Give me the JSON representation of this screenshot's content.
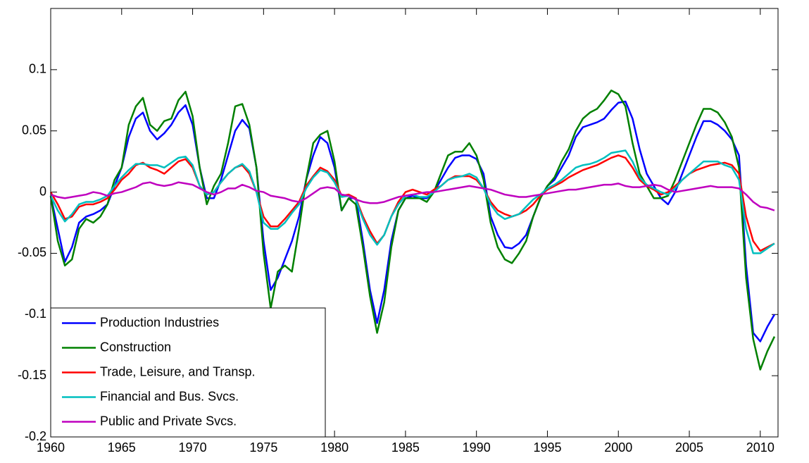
{
  "chart_data": {
    "type": "line",
    "x": [
      1960,
      1960.5,
      1961,
      1961.5,
      1962,
      1962.5,
      1963,
      1963.5,
      1964,
      1964.5,
      1965,
      1965.5,
      1966,
      1966.5,
      1967,
      1967.5,
      1968,
      1968.5,
      1969,
      1969.5,
      1970,
      1970.5,
      1971,
      1971.5,
      1972,
      1972.5,
      1973,
      1973.5,
      1974,
      1974.5,
      1975,
      1975.5,
      1976,
      1976.5,
      1977,
      1977.5,
      1978,
      1978.5,
      1979,
      1979.5,
      1980,
      1980.5,
      1981,
      1981.5,
      1982,
      1982.5,
      1983,
      1983.5,
      1984,
      1984.5,
      1985,
      1985.5,
      1986,
      1986.5,
      1987,
      1987.5,
      1988,
      1988.5,
      1989,
      1989.5,
      1990,
      1990.5,
      1991,
      1991.5,
      1992,
      1992.5,
      1993,
      1993.5,
      1994,
      1994.5,
      1995,
      1995.5,
      1996,
      1996.5,
      1997,
      1997.5,
      1998,
      1998.5,
      1999,
      1999.5,
      2000,
      2000.5,
      2001,
      2001.5,
      2002,
      2002.5,
      2003,
      2003.5,
      2004,
      2004.5,
      2005,
      2005.5,
      2006,
      2006.5,
      2007,
      2007.5,
      2008,
      2008.5,
      2009,
      2009.5,
      2010,
      2010.5,
      2011
    ],
    "series": [
      {
        "name": "Production Industries",
        "color": "#0000ff",
        "values": [
          -0.003,
          -0.03,
          -0.057,
          -0.045,
          -0.025,
          -0.02,
          -0.018,
          -0.015,
          -0.01,
          0.005,
          0.02,
          0.045,
          0.06,
          0.065,
          0.05,
          0.043,
          0.048,
          0.055,
          0.065,
          0.071,
          0.055,
          0.02,
          -0.005,
          -0.005,
          0.01,
          0.03,
          0.05,
          0.059,
          0.052,
          0.02,
          -0.04,
          -0.08,
          -0.07,
          -0.055,
          -0.04,
          -0.02,
          0.01,
          0.03,
          0.045,
          0.04,
          0.02,
          -0.015,
          -0.005,
          -0.005,
          -0.04,
          -0.08,
          -0.107,
          -0.08,
          -0.04,
          -0.015,
          -0.005,
          -0.003,
          -0.005,
          -0.005,
          0,
          0.01,
          0.02,
          0.028,
          0.03,
          0.03,
          0.027,
          0.015,
          -0.02,
          -0.035,
          -0.045,
          -0.046,
          -0.042,
          -0.035,
          -0.02,
          -0.005,
          0.005,
          0.01,
          0.02,
          0.03,
          0.045,
          0.053,
          0.055,
          0.057,
          0.06,
          0.067,
          0.073,
          0.074,
          0.06,
          0.035,
          0.015,
          0.005,
          -0.005,
          -0.01,
          0,
          0.015,
          0.03,
          0.045,
          0.058,
          0.058,
          0.055,
          0.05,
          0.043,
          0.03,
          -0.06,
          -0.115,
          -0.122,
          -0.11,
          -0.1
        ]
      },
      {
        "name": "Construction",
        "color": "#008000",
        "values": [
          -0.003,
          -0.04,
          -0.06,
          -0.055,
          -0.03,
          -0.022,
          -0.025,
          -0.02,
          -0.01,
          0.01,
          0.02,
          0.055,
          0.07,
          0.077,
          0.055,
          0.05,
          0.058,
          0.06,
          0.075,
          0.082,
          0.062,
          0.02,
          -0.01,
          0.005,
          0.015,
          0.04,
          0.07,
          0.072,
          0.055,
          0.02,
          -0.05,
          -0.095,
          -0.065,
          -0.06,
          -0.065,
          -0.03,
          0.01,
          0.04,
          0.047,
          0.05,
          0.025,
          -0.015,
          -0.005,
          -0.01,
          -0.045,
          -0.085,
          -0.115,
          -0.09,
          -0.045,
          -0.015,
          -0.005,
          -0.005,
          -0.005,
          -0.008,
          0,
          0.015,
          0.03,
          0.033,
          0.033,
          0.04,
          0.03,
          0.01,
          -0.025,
          -0.045,
          -0.055,
          -0.058,
          -0.05,
          -0.04,
          -0.02,
          -0.005,
          0.005,
          0.012,
          0.025,
          0.035,
          0.05,
          0.06,
          0.065,
          0.068,
          0.075,
          0.083,
          0.08,
          0.07,
          0.04,
          0.015,
          0.005,
          -0.005,
          -0.005,
          -0.003,
          0.01,
          0.025,
          0.04,
          0.055,
          0.068,
          0.068,
          0.065,
          0.057,
          0.045,
          0.02,
          -0.07,
          -0.12,
          -0.145,
          -0.13,
          -0.118
        ]
      },
      {
        "name": "Trade, Leisure, and Transp.",
        "color": "#ff0000",
        "values": [
          0,
          -0.01,
          -0.022,
          -0.02,
          -0.012,
          -0.01,
          -0.01,
          -0.008,
          -0.005,
          0.002,
          0.01,
          0.015,
          0.022,
          0.024,
          0.02,
          0.018,
          0.015,
          0.02,
          0.025,
          0.027,
          0.02,
          0.005,
          -0.002,
          0,
          0.008,
          0.015,
          0.02,
          0.022,
          0.015,
          0,
          -0.02,
          -0.028,
          -0.028,
          -0.022,
          -0.015,
          -0.008,
          0.005,
          0.013,
          0.02,
          0.017,
          0.01,
          -0.003,
          -0.002,
          -0.005,
          -0.02,
          -0.032,
          -0.042,
          -0.035,
          -0.02,
          -0.008,
          0,
          0.002,
          0,
          -0.002,
          0.002,
          0.005,
          0.01,
          0.013,
          0.013,
          0.013,
          0.01,
          0.003,
          -0.008,
          -0.015,
          -0.018,
          -0.02,
          -0.018,
          -0.015,
          -0.01,
          -0.003,
          0.002,
          0.005,
          0.008,
          0.012,
          0.015,
          0.018,
          0.02,
          0.022,
          0.025,
          0.028,
          0.03,
          0.028,
          0.02,
          0.01,
          0.005,
          0.002,
          -0.002,
          0,
          0.005,
          0.01,
          0.015,
          0.018,
          0.02,
          0.022,
          0.023,
          0.024,
          0.022,
          0.015,
          -0.02,
          -0.04,
          -0.048,
          -0.045,
          -0.042
        ]
      },
      {
        "name": "Financial and Bus. Svcs.",
        "color": "#00bfbf",
        "values": [
          -0.003,
          -0.015,
          -0.024,
          -0.018,
          -0.01,
          -0.008,
          -0.008,
          -0.006,
          -0.003,
          0.005,
          0.012,
          0.018,
          0.023,
          0.023,
          0.022,
          0.022,
          0.02,
          0.024,
          0.028,
          0.029,
          0.022,
          0.005,
          -0.002,
          0,
          0.008,
          0.015,
          0.02,
          0.023,
          0.017,
          0,
          -0.025,
          -0.03,
          -0.03,
          -0.025,
          -0.017,
          -0.01,
          0.003,
          0.012,
          0.018,
          0.016,
          0.008,
          -0.004,
          -0.003,
          -0.006,
          -0.022,
          -0.035,
          -0.043,
          -0.035,
          -0.02,
          -0.01,
          -0.003,
          -0.002,
          -0.004,
          -0.004,
          0,
          0.005,
          0.01,
          0.012,
          0.013,
          0.015,
          0.012,
          0.003,
          -0.01,
          -0.018,
          -0.022,
          -0.02,
          -0.018,
          -0.012,
          -0.006,
          -0.002,
          0.003,
          0.006,
          0.01,
          0.015,
          0.02,
          0.022,
          0.023,
          0.025,
          0.028,
          0.032,
          0.033,
          0.034,
          0.025,
          0.012,
          0.006,
          0.003,
          0,
          -0.002,
          0.003,
          0.01,
          0.015,
          0.02,
          0.025,
          0.025,
          0.025,
          0.022,
          0.02,
          0.01,
          -0.03,
          -0.05,
          -0.05,
          -0.046,
          -0.042
        ]
      },
      {
        "name": "Public and Private Svcs.",
        "color": "#bf00bf",
        "values": [
          -0.002,
          -0.004,
          -0.005,
          -0.004,
          -0.003,
          -0.002,
          0,
          -0.001,
          -0.003,
          -0.001,
          0,
          0.002,
          0.004,
          0.007,
          0.008,
          0.006,
          0.005,
          0.006,
          0.008,
          0.007,
          0.006,
          0.003,
          0,
          -0.002,
          0,
          0.003,
          0.003,
          0.006,
          0.004,
          0.001,
          0,
          -0.003,
          -0.004,
          -0.005,
          -0.007,
          -0.008,
          -0.005,
          -0.001,
          0.003,
          0.004,
          0.003,
          -0.002,
          -0.003,
          -0.006,
          -0.008,
          -0.009,
          -0.009,
          -0.008,
          -0.006,
          -0.004,
          -0.003,
          -0.002,
          -0.001,
          0,
          0,
          0.001,
          0.002,
          0.003,
          0.004,
          0.005,
          0.004,
          0.003,
          0.002,
          0,
          -0.002,
          -0.003,
          -0.004,
          -0.004,
          -0.003,
          -0.002,
          -0.001,
          0,
          0.001,
          0.002,
          0.002,
          0.003,
          0.004,
          0.005,
          0.006,
          0.006,
          0.007,
          0.005,
          0.004,
          0.004,
          0.005,
          0.006,
          0.005,
          0.002,
          0,
          0.001,
          0.002,
          0.003,
          0.004,
          0.005,
          0.004,
          0.004,
          0.004,
          0.003,
          -0.002,
          -0.008,
          -0.012,
          -0.013,
          -0.015
        ]
      }
    ],
    "xlim": [
      1960,
      2011.25
    ],
    "xticks": [
      1960,
      1965,
      1970,
      1975,
      1980,
      1985,
      1990,
      1995,
      2000,
      2005,
      2010
    ],
    "ylim": [
      -0.2,
      0.15
    ],
    "yticks": [
      -0.2,
      -0.15,
      -0.1,
      -0.05,
      0,
      0.05,
      0.1
    ],
    "grid": false,
    "legend": "lower left"
  }
}
